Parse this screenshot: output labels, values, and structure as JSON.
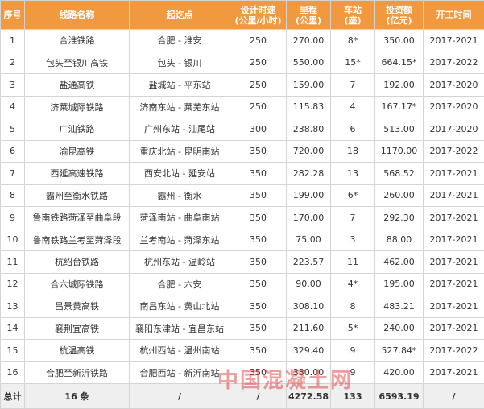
{
  "table": {
    "header": [
      [
        "序号"
      ],
      [
        "线路名称"
      ],
      [
        "起讫点"
      ],
      [
        "设计时速",
        "(公里/小时)"
      ],
      [
        "里程",
        "(公里)"
      ],
      [
        "车站",
        "(座)"
      ],
      [
        "投资额",
        "(亿元)"
      ],
      [
        "开工时间"
      ]
    ],
    "rows": [
      [
        "1",
        "合淮铁路",
        "合肥 - 淮安",
        "250",
        "270.00",
        "8*",
        "350.00",
        "2017-2021"
      ],
      [
        "2",
        "包头至银川高铁",
        "包头 - 银川",
        "250",
        "550.00",
        "15*",
        "664.15*",
        "2017-2022"
      ],
      [
        "3",
        "盐通高铁",
        "盐城站 - 平东站",
        "250",
        "159.00",
        "7",
        "192.00",
        "2017-2020"
      ],
      [
        "4",
        "济莱城际铁路",
        "济南东站 - 莱芜东站",
        "250",
        "115.83",
        "4",
        "167.17*",
        "2017-2020"
      ],
      [
        "5",
        "广汕铁路",
        "广州东站 - 汕尾站",
        "300",
        "238.80",
        "6",
        "513.00",
        "2017-2020"
      ],
      [
        "6",
        "渝昆高铁",
        "重庆北站 - 昆明南站",
        "350",
        "720.00",
        "18",
        "1170.00",
        "2017-2022"
      ],
      [
        "7",
        "西延高速铁路",
        "西安北站 - 延安站",
        "350",
        "282.28",
        "13",
        "568.52",
        "2017-2021"
      ],
      [
        "8",
        "霸州至衡水铁路",
        "霸州 - 衡水",
        "350",
        "199.00",
        "6*",
        "260.00",
        "2017-2021"
      ],
      [
        "9",
        "鲁南铁路菏泽至曲阜段",
        "菏泽南站 - 曲阜南站",
        "350",
        "170.00",
        "7",
        "292.30",
        "2017-2021"
      ],
      [
        "10",
        "鲁南铁路兰考至菏泽段",
        "兰考南站 - 菏泽东站",
        "350",
        "75.00",
        "3",
        "88.00",
        "2017-2021"
      ],
      [
        "11",
        "杭绍台铁路",
        "杭州东站 - 温岭站",
        "350",
        "223.57",
        "11",
        "462.00",
        "2017-2021"
      ],
      [
        "12",
        "合六城际铁路",
        "合肥 - 六安",
        "350",
        "90.00",
        "4*",
        "195.00",
        "2017-2021"
      ],
      [
        "13",
        "昌景黄高铁",
        "南昌东站 - 黄山北站",
        "350",
        "308.10",
        "8",
        "483.21",
        "2017-2021"
      ],
      [
        "14",
        "襄荆宜高铁",
        "襄阳东津站 - 宜昌东站",
        "350",
        "211.60",
        "5*",
        "240.00",
        "2017-2021"
      ],
      [
        "15",
        "杭温高铁",
        "杭州西站 - 温州南站",
        "350",
        "329.40",
        "9",
        "527.84*",
        "2017-2022"
      ],
      [
        "16",
        "合肥至新沂铁路",
        "合肥西站 - 新沂南站",
        "350",
        "330.00",
        "9",
        "420.00",
        "2017-2021"
      ]
    ],
    "total": [
      "总计",
      "16 条",
      "/",
      "/",
      "4272.58",
      "133",
      "6593.19",
      "/"
    ]
  },
  "watermark": "中国混凝土网"
}
